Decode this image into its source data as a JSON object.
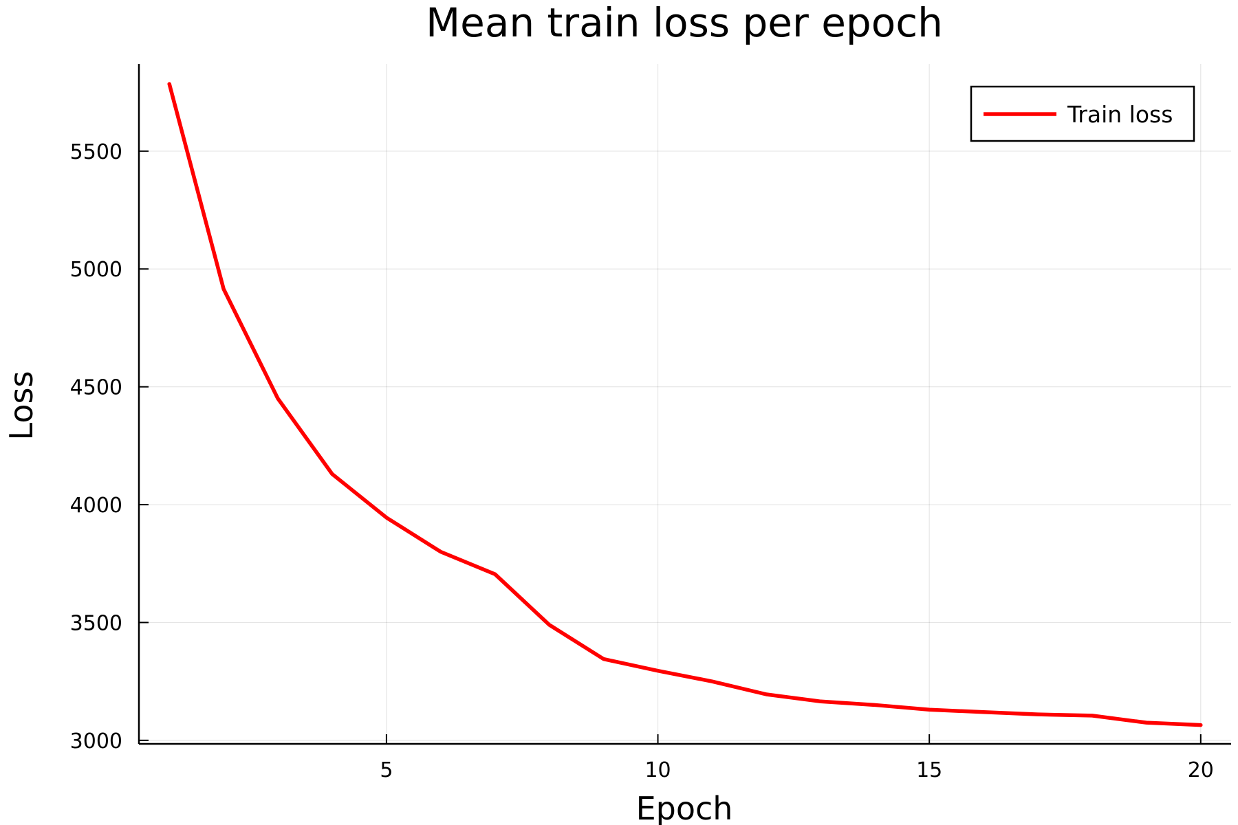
{
  "chart_data": {
    "type": "line",
    "title": "Mean train loss per epoch",
    "xlabel": "Epoch",
    "ylabel": "Loss",
    "xlim": [
      0.44,
      20.56
    ],
    "ylim": [
      2985,
      5870
    ],
    "x_ticks": [
      5,
      10,
      15,
      20
    ],
    "y_ticks": [
      3000,
      3500,
      4000,
      4500,
      5000,
      5500
    ],
    "grid": true,
    "legend_position": "top-right",
    "series": [
      {
        "name": "Train loss",
        "color": "#ff0000",
        "x": [
          1,
          2,
          3,
          4,
          5,
          6,
          7,
          8,
          9,
          10,
          11,
          12,
          13,
          14,
          15,
          16,
          17,
          18,
          19,
          20
        ],
        "y": [
          5785,
          4915,
          4450,
          4130,
          3945,
          3800,
          3705,
          3490,
          3345,
          3295,
          3250,
          3195,
          3165,
          3150,
          3130,
          3120,
          3110,
          3105,
          3075,
          3065
        ]
      }
    ]
  }
}
